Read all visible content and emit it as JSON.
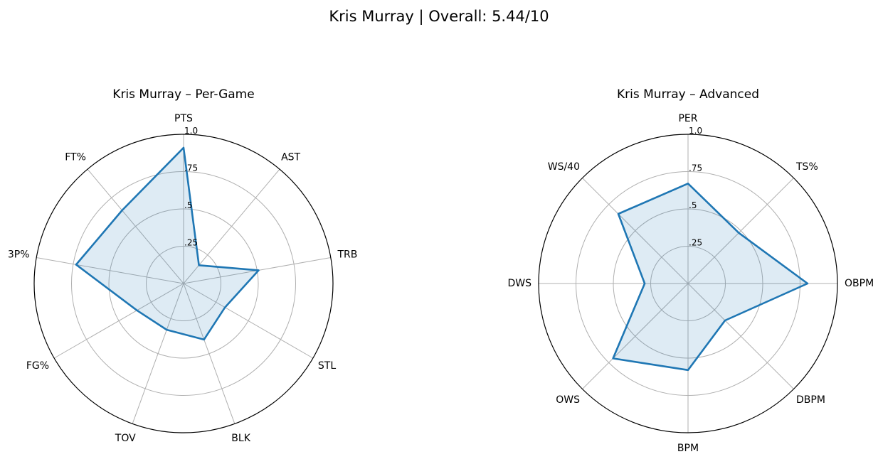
{
  "figure": {
    "title": "Kris Murray | Overall: 5.44/10"
  },
  "colors": {
    "series": "#1f77b4",
    "grid": "#b0b0b0",
    "frame": "#000000"
  },
  "chart_data": [
    {
      "type": "radar",
      "title": "Kris Murray – Per-Game",
      "categories": [
        "PTS",
        "AST",
        "TRB",
        "STL",
        "BLK",
        "TOV",
        "FG%",
        "3P%",
        "FT%"
      ],
      "values": [
        0.91,
        0.16,
        0.51,
        0.32,
        0.4,
        0.33,
        0.36,
        0.73,
        0.64
      ],
      "rlim": [
        0,
        1.0
      ],
      "ticks": [
        0.25,
        0.5,
        0.75,
        1.0
      ],
      "tick_labels": [
        ".25",
        ".5",
        ".75",
        "1.0"
      ],
      "grid": true
    },
    {
      "type": "radar",
      "title": "Kris Murray – Advanced",
      "categories": [
        "PER",
        "TS%",
        "OBPM",
        "DBPM",
        "BPM",
        "OWS",
        "DWS",
        "WS/40"
      ],
      "values": [
        0.67,
        0.48,
        0.8,
        0.35,
        0.58,
        0.71,
        0.29,
        0.66
      ],
      "rlim": [
        0,
        1.0
      ],
      "ticks": [
        0.25,
        0.5,
        0.75,
        1.0
      ],
      "tick_labels": [
        ".25",
        ".5",
        ".75",
        "1.0"
      ],
      "grid": true
    }
  ]
}
